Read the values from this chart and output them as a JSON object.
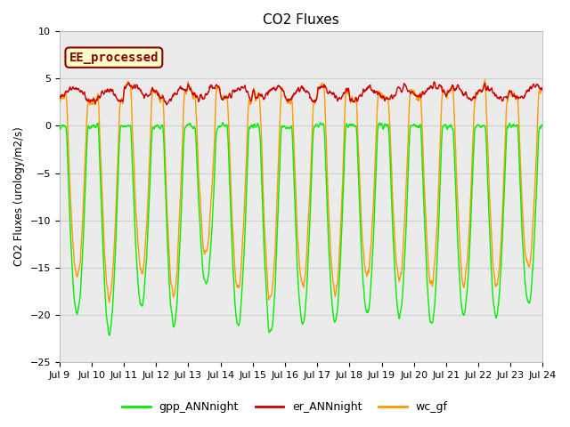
{
  "title": "CO2 Fluxes",
  "ylabel": "CO2 Fluxes (urology/m2/s)",
  "ylim": [
    -25,
    10
  ],
  "yticks": [
    -25,
    -20,
    -15,
    -10,
    -5,
    0,
    5,
    10
  ],
  "xtick_labels": [
    "Jul 9",
    "Jul 10",
    "Jul 11",
    "Jul 12",
    "Jul 13",
    "Jul 14",
    "Jul 15",
    "Jul 16",
    "Jul 17",
    "Jul 18",
    "Jul 19",
    "Jul 20",
    "Jul 21",
    "Jul 22",
    "Jul 23",
    "Jul 24"
  ],
  "legend_labels": [
    "gpp_ANNnight",
    "er_ANNnight",
    "wc_gf"
  ],
  "legend_colors": [
    "#00ee00",
    "#cc0000",
    "#ff9900"
  ],
  "annotation_text": "EE_processed",
  "annotation_color": "#880000",
  "annotation_bg": "#ffffcc",
  "bg_color": "#ebebeb",
  "fig_bg": "#ffffff",
  "grid_color": "#d0d0d0",
  "line_width": 1.0
}
